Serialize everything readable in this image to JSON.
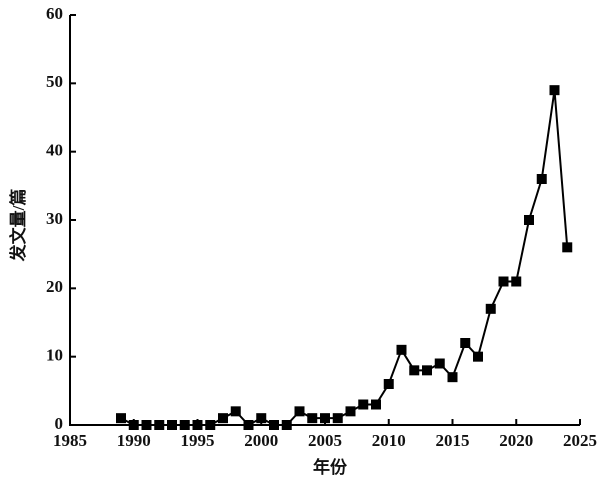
{
  "chart_data": {
    "type": "line",
    "x_label": "年份",
    "y_label": "发文量/篇",
    "x": [
      1989,
      1990,
      1991,
      1992,
      1993,
      1994,
      1995,
      1996,
      1997,
      1998,
      1999,
      2000,
      2001,
      2002,
      2003,
      2004,
      2005,
      2006,
      2007,
      2008,
      2009,
      2010,
      2011,
      2012,
      2013,
      2014,
      2015,
      2016,
      2017,
      2018,
      2019,
      2020,
      2021,
      2022,
      2023,
      2024
    ],
    "values": [
      1,
      0,
      0,
      0,
      0,
      0,
      0,
      0,
      1,
      2,
      0,
      1,
      0,
      0,
      2,
      1,
      1,
      1,
      2,
      3,
      3,
      6,
      11,
      8,
      8,
      9,
      7,
      12,
      10,
      17,
      21,
      21,
      30,
      36,
      49,
      26
    ],
    "color": "#000000",
    "xlim": [
      1985,
      2025
    ],
    "xticks": [
      1985,
      1990,
      1995,
      2000,
      2005,
      2010,
      2015,
      2020,
      2025
    ],
    "ylim": [
      0,
      60
    ],
    "yticks": [
      0,
      10,
      20,
      30,
      40,
      50,
      60
    ]
  }
}
